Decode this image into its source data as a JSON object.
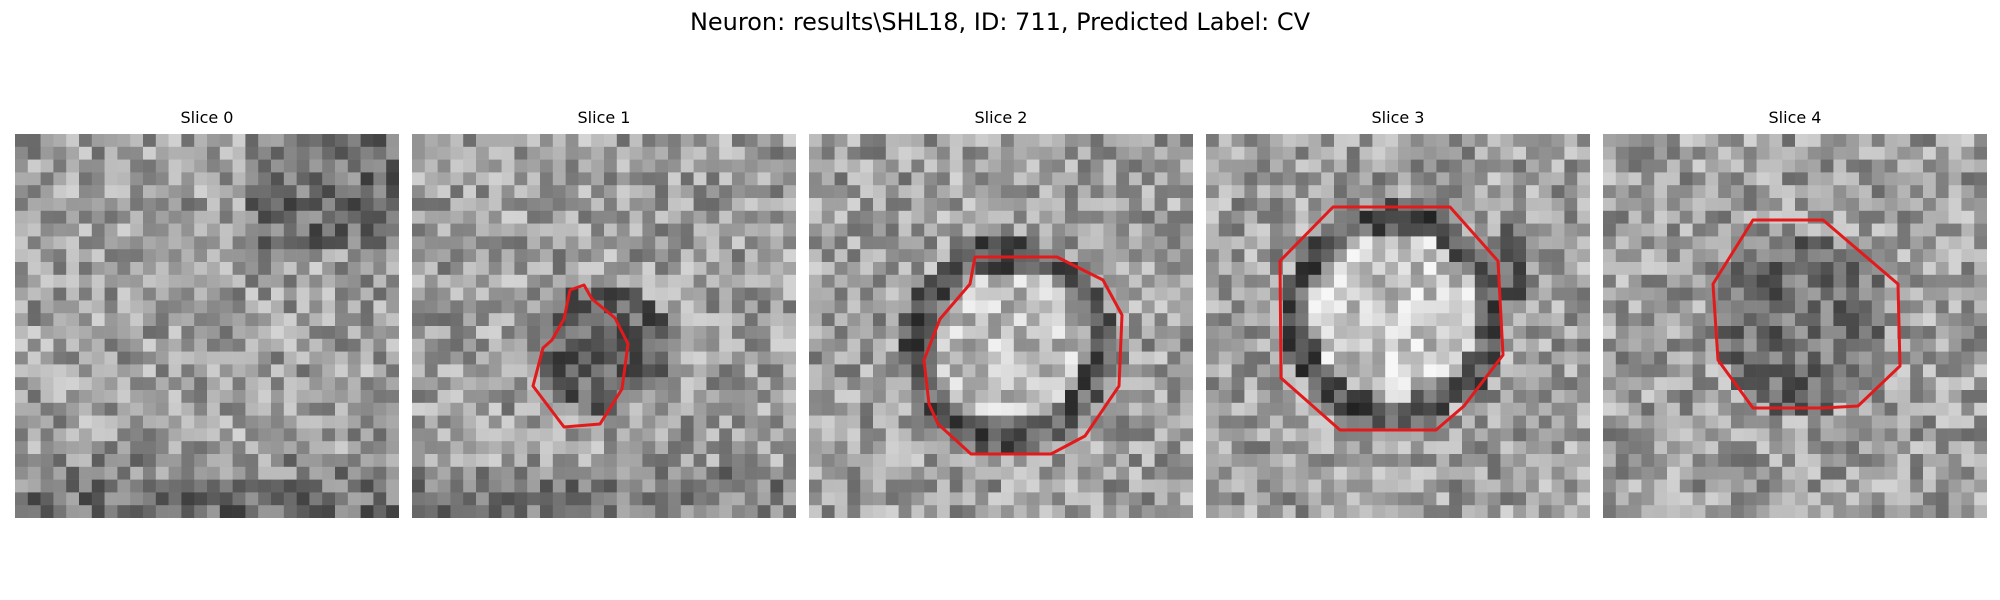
{
  "figure": {
    "title": "Neuron: results\\SHL18, ID: 711, Predicted Label: CV",
    "contour_color": "#e31a1c"
  },
  "panels": [
    {
      "title": "Slice 0",
      "has_contour": false,
      "content": "grayscale noisy microscopy patch, darker band along bottom, dark cluster upper-right"
    },
    {
      "title": "Slice 1",
      "has_contour": true,
      "content": "grayscale patch with small irregular red outline around a dark blob near center"
    },
    {
      "title": "Slice 2",
      "has_contour": true,
      "content": "grayscale patch with red irregular polygon around a bright disc with dark ring"
    },
    {
      "title": "Slice 3",
      "has_contour": true,
      "content": "grayscale patch with large red octagon around a bright round body with dark rim"
    },
    {
      "title": "Slice 4",
      "has_contour": true,
      "content": "grayscale patch with red octagon around a dark textured blob"
    }
  ]
}
